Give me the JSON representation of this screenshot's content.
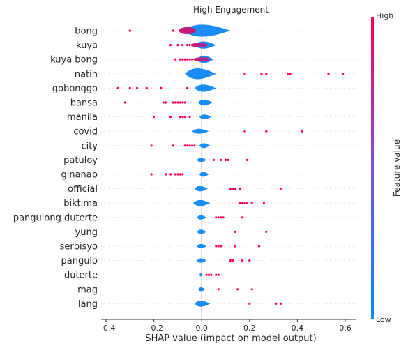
{
  "chart_data": {
    "type": "scatter",
    "subtype": "shap-violin-summary",
    "title": "High Engagement",
    "xlabel": "SHAP value (impact on model output)",
    "xlim": [
      -0.4,
      0.65
    ],
    "xticks": [
      -0.4,
      -0.2,
      0.0,
      0.2,
      0.4,
      0.6
    ],
    "xtick_labels": [
      "−0.4",
      "−0.2",
      "0.0",
      "0.2",
      "0.4",
      "0.6"
    ],
    "colorbar": {
      "label": "Feature value",
      "high_label": "High",
      "low_label": "Low",
      "low_color": "#008bfb",
      "mid_color": "#7c52e3",
      "high_color": "#ff0051"
    },
    "features": [
      {
        "name": "bong",
        "violin": [
          -0.08,
          0.12,
          0.05
        ],
        "points": [
          -0.3,
          -0.3,
          -0.12,
          -0.09,
          -0.07,
          -0.05,
          -0.04,
          -0.03
        ]
      },
      {
        "name": "kuya",
        "violin": [
          -0.03,
          0.06,
          0.03
        ],
        "points": [
          -0.13,
          -0.1,
          -0.08,
          -0.06,
          -0.05,
          -0.04,
          -0.03
        ]
      },
      {
        "name": "kuya bong",
        "violin": [
          -0.02,
          0.05,
          0.03
        ],
        "points": [
          -0.11,
          -0.09,
          -0.08,
          -0.07,
          -0.06,
          -0.05,
          -0.04
        ]
      },
      {
        "name": "natin",
        "violin": [
          -0.07,
          0.06,
          0.045
        ],
        "points": [
          0.18,
          0.25,
          0.27,
          0.36,
          0.37,
          0.53,
          0.59
        ]
      },
      {
        "name": "gobonggo",
        "violin": [
          -0.03,
          0.06,
          0.03
        ],
        "points": [
          -0.35,
          -0.3,
          -0.27,
          -0.23,
          -0.17,
          -0.06
        ]
      },
      {
        "name": "bansa",
        "violin": [
          -0.015,
          0.045,
          0.025
        ],
        "points": [
          -0.32,
          -0.16,
          -0.15,
          -0.12,
          -0.11,
          -0.1,
          -0.09,
          -0.08,
          -0.07
        ]
      },
      {
        "name": "manila",
        "violin": [
          -0.01,
          0.04,
          0.02
        ],
        "points": [
          -0.2,
          -0.13,
          -0.09,
          -0.08,
          -0.07,
          -0.05
        ]
      },
      {
        "name": "covid",
        "violin": [
          -0.04,
          0.03,
          0.02
        ],
        "points": [
          0.18,
          0.27,
          0.42
        ]
      },
      {
        "name": "city",
        "violin": [
          -0.01,
          0.035,
          0.02
        ],
        "points": [
          -0.21,
          -0.12,
          -0.07,
          -0.06,
          -0.05,
          -0.04,
          -0.03
        ]
      },
      {
        "name": "patuloy",
        "violin": [
          -0.02,
          0.02,
          0.018
        ],
        "points": [
          0.05,
          0.08,
          0.1,
          0.11,
          0.19
        ]
      },
      {
        "name": "ginanap",
        "violin": [
          -0.01,
          0.03,
          0.02
        ],
        "points": [
          -0.21,
          -0.15,
          -0.13,
          -0.11,
          -0.1,
          -0.09,
          -0.08
        ]
      },
      {
        "name": "official",
        "violin": [
          -0.03,
          0.025,
          0.022
        ],
        "points": [
          0.12,
          0.13,
          0.14,
          0.16,
          0.33
        ]
      },
      {
        "name": "biktima",
        "violin": [
          -0.035,
          0.035,
          0.025
        ],
        "points": [
          0.16,
          0.17,
          0.18,
          0.19,
          0.21,
          0.26
        ]
      },
      {
        "name": "pangulong duterte",
        "violin": [
          -0.02,
          0.02,
          0.018
        ],
        "points": [
          0.06,
          0.07,
          0.08,
          0.09,
          0.17
        ]
      },
      {
        "name": "yung",
        "violin": [
          -0.02,
          0.02,
          0.018
        ],
        "points": [
          0.14,
          0.27
        ]
      },
      {
        "name": "serbisyo",
        "violin": [
          -0.02,
          0.02,
          0.018
        ],
        "points": [
          0.06,
          0.07,
          0.08,
          0.14,
          0.24
        ]
      },
      {
        "name": "pangulo",
        "violin": [
          -0.02,
          0.02,
          0.018
        ],
        "points": [
          0.12,
          0.13,
          0.17,
          0.2
        ]
      },
      {
        "name": "duterte",
        "violin": [
          -0.01,
          0.005,
          0.012
        ],
        "points": [
          0.02,
          0.03,
          0.04,
          0.06,
          0.07
        ]
      },
      {
        "name": "mag",
        "violin": [
          -0.015,
          0.015,
          0.016
        ],
        "points": [
          0.07,
          0.15,
          0.21
        ]
      },
      {
        "name": "lang",
        "violin": [
          -0.03,
          0.035,
          0.025
        ],
        "points": [
          0.2,
          0.31,
          0.33
        ]
      }
    ]
  }
}
